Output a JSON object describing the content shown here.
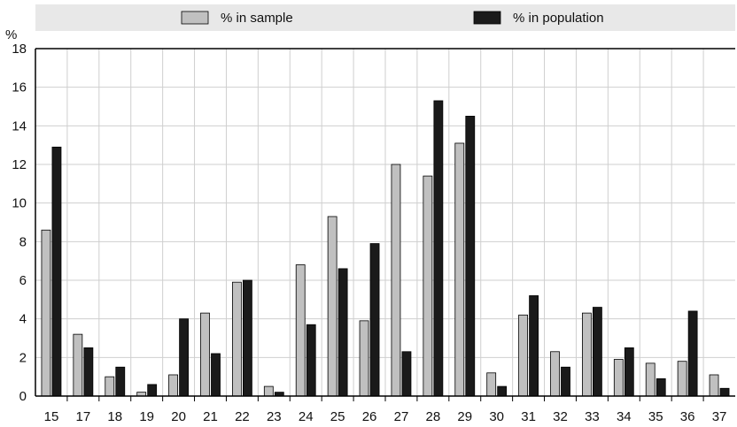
{
  "chart_data": {
    "type": "bar",
    "y_unit_label": "%",
    "categories": [
      "15",
      "17",
      "18",
      "19",
      "20",
      "21",
      "22",
      "23",
      "24",
      "25",
      "26",
      "27",
      "28",
      "29",
      "30",
      "31",
      "32",
      "33",
      "34",
      "35",
      "36",
      "37"
    ],
    "series": [
      {
        "name": "% in sample",
        "color": "#c0c0c0",
        "values": [
          8.6,
          3.2,
          1.0,
          0.2,
          1.1,
          4.3,
          5.9,
          0.5,
          6.8,
          9.3,
          3.9,
          12.0,
          11.4,
          13.1,
          1.2,
          4.2,
          2.3,
          4.3,
          1.9,
          1.7,
          1.8,
          1.1
        ]
      },
      {
        "name": "% in population",
        "color": "#1a1a1a",
        "values": [
          12.9,
          2.5,
          1.5,
          0.6,
          4.0,
          2.2,
          6.0,
          0.2,
          3.7,
          6.6,
          7.9,
          2.3,
          15.3,
          14.5,
          0.5,
          5.2,
          1.5,
          4.6,
          2.5,
          0.9,
          4.4,
          0.4
        ]
      }
    ],
    "ylim": [
      0,
      18
    ],
    "yticks": [
      0,
      2,
      4,
      6,
      8,
      10,
      12,
      14,
      16,
      18
    ],
    "grid": true,
    "legend_position": "top"
  }
}
